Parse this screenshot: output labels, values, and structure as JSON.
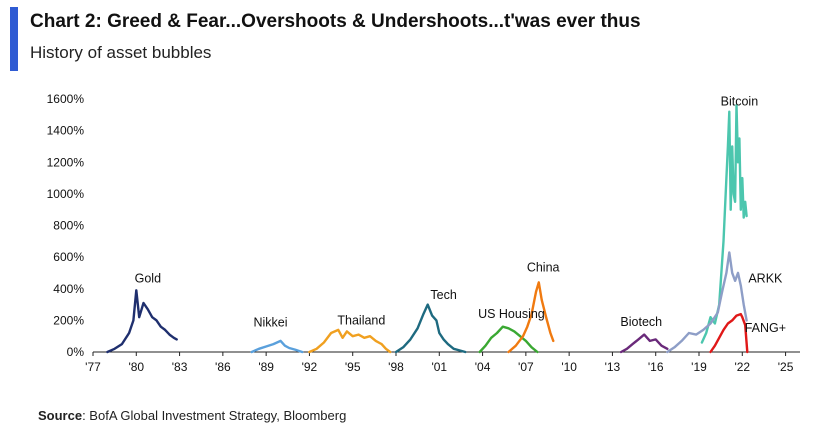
{
  "header": {
    "title": "Chart 2: Greed & Fear...Overshoots & Undershoots...t'was ever thus",
    "subtitle": "History of asset bubbles",
    "accent_color": "#2f5bd3"
  },
  "source": {
    "label": "Source",
    "text": ": BofA Global Investment Strategy, Bloomberg"
  },
  "chart_data": {
    "type": "line",
    "title": "",
    "xlabel": "",
    "ylabel": "",
    "xlim": [
      1977,
      2026
    ],
    "ylim": [
      0,
      1600
    ],
    "x_ticks": [
      1977,
      1980,
      1983,
      1986,
      1989,
      1992,
      1995,
      1998,
      2001,
      2004,
      2007,
      2010,
      2013,
      2016,
      2019,
      2022,
      2025
    ],
    "x_tick_labels": [
      "'77",
      "'80",
      "'83",
      "'86",
      "'89",
      "'92",
      "'95",
      "'98",
      "'01",
      "'04",
      "'07",
      "'10",
      "'13",
      "'16",
      "'19",
      "'22",
      "'25"
    ],
    "y_ticks": [
      0,
      200,
      400,
      600,
      800,
      1000,
      1200,
      1400,
      1600
    ],
    "y_tick_labels": [
      "0%",
      "200%",
      "400%",
      "600%",
      "800%",
      "1000%",
      "1200%",
      "1400%",
      "1600%"
    ],
    "grid": false,
    "series": [
      {
        "name": "Gold",
        "color": "#1f2f6e",
        "x": [
          1978.0,
          1978.5,
          1979.0,
          1979.5,
          1979.8,
          1980.0,
          1980.2,
          1980.5,
          1980.8,
          1981.1,
          1981.4,
          1981.7,
          1982.0,
          1982.3,
          1982.6,
          1982.8
        ],
        "y": [
          0,
          20,
          50,
          120,
          200,
          390,
          220,
          310,
          270,
          220,
          200,
          160,
          140,
          110,
          90,
          80
        ]
      },
      {
        "name": "Nikkei",
        "color": "#5aa0dc",
        "x": [
          1988.0,
          1988.5,
          1989.0,
          1989.5,
          1990.0,
          1990.3,
          1990.6,
          1991.0,
          1991.5
        ],
        "y": [
          0,
          20,
          35,
          50,
          70,
          40,
          25,
          15,
          0
        ]
      },
      {
        "name": "Thailand",
        "color": "#f0a020",
        "x": [
          1992.0,
          1992.5,
          1993.0,
          1993.5,
          1994.0,
          1994.3,
          1994.6,
          1995.0,
          1995.4,
          1995.8,
          1996.2,
          1996.6,
          1997.0,
          1997.3,
          1997.6
        ],
        "y": [
          0,
          20,
          60,
          120,
          140,
          90,
          130,
          100,
          110,
          90,
          100,
          70,
          50,
          20,
          0
        ]
      },
      {
        "name": "Tech",
        "color": "#1e6a80",
        "x": [
          1998.0,
          1998.5,
          1999.0,
          1999.5,
          1999.9,
          2000.2,
          2000.5,
          2000.8,
          2001.0,
          2001.3,
          2001.6,
          2002.0,
          2002.4,
          2002.8
        ],
        "y": [
          0,
          30,
          80,
          150,
          240,
          300,
          230,
          200,
          120,
          80,
          50,
          20,
          10,
          0
        ]
      },
      {
        "name": "US Housing",
        "color": "#3aa832",
        "x": [
          2003.8,
          2004.2,
          2004.6,
          2005.0,
          2005.4,
          2005.8,
          2006.2,
          2006.6,
          2007.0,
          2007.4,
          2007.8
        ],
        "y": [
          0,
          40,
          90,
          120,
          160,
          150,
          130,
          100,
          70,
          30,
          0
        ]
      },
      {
        "name": "China",
        "color": "#f07a10",
        "x": [
          2005.8,
          2006.3,
          2006.8,
          2007.1,
          2007.4,
          2007.7,
          2007.9,
          2008.1,
          2008.4,
          2008.7,
          2008.9
        ],
        "y": [
          0,
          40,
          100,
          160,
          240,
          380,
          440,
          330,
          220,
          120,
          70
        ]
      },
      {
        "name": "Biotech",
        "color": "#6a2a7a",
        "x": [
          2013.6,
          2014.0,
          2014.4,
          2014.8,
          2015.2,
          2015.6,
          2016.0,
          2016.4,
          2016.8
        ],
        "y": [
          0,
          20,
          50,
          80,
          110,
          70,
          80,
          40,
          20
        ]
      },
      {
        "name": "Bitcoin",
        "color": "#4cc6ae",
        "x": [
          2019.2,
          2019.5,
          2019.8,
          2020.1,
          2020.4,
          2020.7,
          2020.9,
          2021.0,
          2021.1,
          2021.2,
          2021.3,
          2021.4,
          2021.5,
          2021.6,
          2021.7,
          2021.8,
          2021.9,
          2022.0,
          2022.1,
          2022.2,
          2022.3
        ],
        "y": [
          60,
          120,
          220,
          180,
          300,
          700,
          1100,
          1300,
          1520,
          900,
          1300,
          1000,
          950,
          1560,
          1200,
          1350,
          900,
          1100,
          850,
          950,
          860
        ]
      },
      {
        "name": "ARKK",
        "color": "#8e9ec7",
        "x": [
          2016.8,
          2017.3,
          2017.8,
          2018.3,
          2018.8,
          2019.3,
          2019.8,
          2020.3,
          2020.6,
          2020.9,
          2021.1,
          2021.3,
          2021.5,
          2021.7,
          2021.9,
          2022.1,
          2022.3
        ],
        "y": [
          0,
          30,
          70,
          120,
          110,
          140,
          180,
          250,
          380,
          500,
          630,
          500,
          450,
          500,
          420,
          300,
          200
        ]
      },
      {
        "name": "FANG+",
        "color": "#e01818",
        "x": [
          2019.8,
          2020.1,
          2020.4,
          2020.7,
          2021.0,
          2021.3,
          2021.6,
          2021.9,
          2022.0,
          2022.2,
          2022.35
        ],
        "y": [
          0,
          40,
          90,
          140,
          180,
          200,
          230,
          240,
          220,
          170,
          0
        ]
      }
    ],
    "annotations": [
      {
        "text": "Gold",
        "x": 1980.8,
        "y": 440
      },
      {
        "text": "Nikkei",
        "x": 1989.3,
        "y": 160
      },
      {
        "text": "Thailand",
        "x": 1995.6,
        "y": 175
      },
      {
        "text": "Tech",
        "x": 2001.3,
        "y": 335
      },
      {
        "text": "US Housing",
        "x": 2006.0,
        "y": 215
      },
      {
        "text": "China",
        "x": 2008.2,
        "y": 510
      },
      {
        "text": "Biotech",
        "x": 2015.0,
        "y": 165
      },
      {
        "text": "Bitcoin",
        "x": 2021.8,
        "y": 1560
      },
      {
        "text": "ARKK",
        "x": 2023.6,
        "y": 440
      },
      {
        "text": "FANG+",
        "x": 2023.6,
        "y": 125
      }
    ]
  }
}
